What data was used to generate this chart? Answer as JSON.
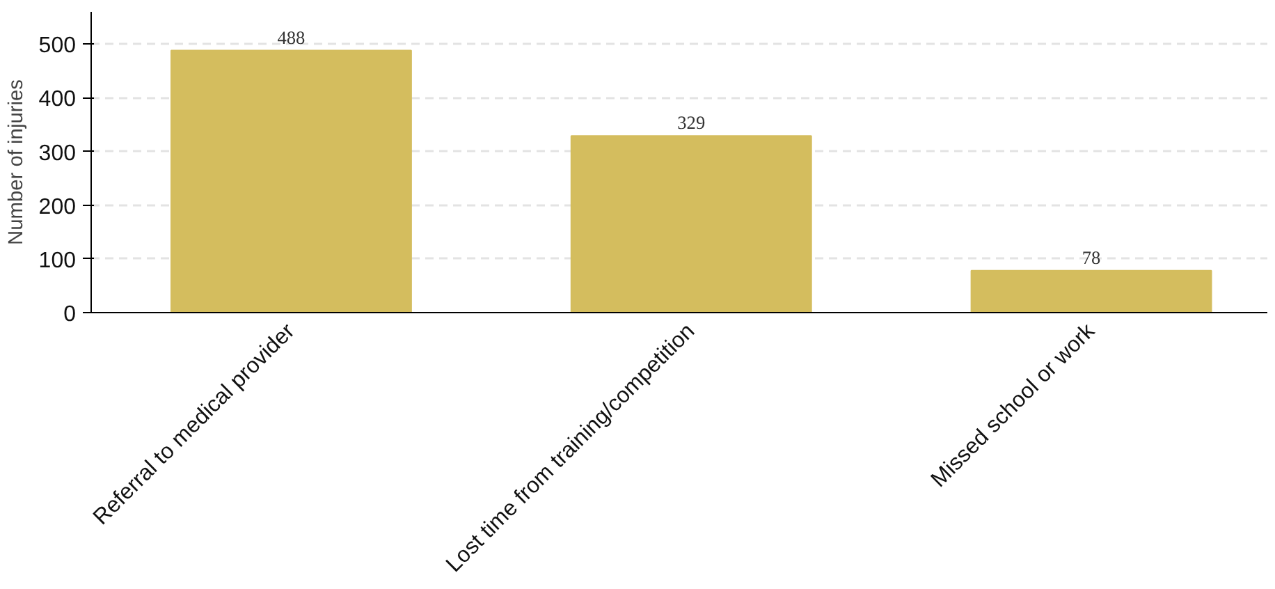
{
  "chart_data": {
    "type": "bar",
    "ylabel": "Number of injuries",
    "categories": [
      "Referral to medical provider",
      "Lost time from training/competition",
      "Missed school or work"
    ],
    "values": [
      488,
      329,
      78
    ],
    "color": "#d4bd5e",
    "ylim": [
      0,
      560
    ],
    "yticks": [
      0,
      100,
      200,
      300,
      400,
      500
    ],
    "grid": "y",
    "data_labels": true
  }
}
